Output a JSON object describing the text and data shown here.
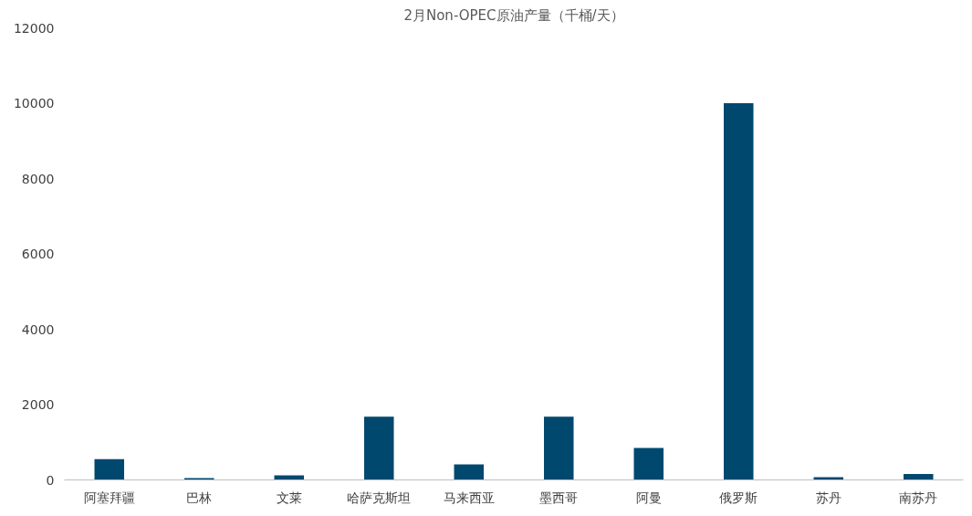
{
  "chart_data": {
    "type": "bar",
    "title": "2月Non-OPEC原油产量（千桶/天）",
    "categories": [
      "阿塞拜疆",
      "巴林",
      "文莱",
      "哈萨克斯坦",
      "马来西亚",
      "墨西哥",
      "阿曼",
      "俄罗斯",
      "苏丹",
      "南苏丹"
    ],
    "values": [
      550,
      50,
      120,
      1680,
      410,
      1680,
      850,
      10000,
      70,
      160
    ],
    "color": "#00486e",
    "ylim": [
      0,
      12000
    ],
    "yticks": [
      0,
      2000,
      4000,
      6000,
      8000,
      10000,
      12000
    ],
    "grid": false
  }
}
